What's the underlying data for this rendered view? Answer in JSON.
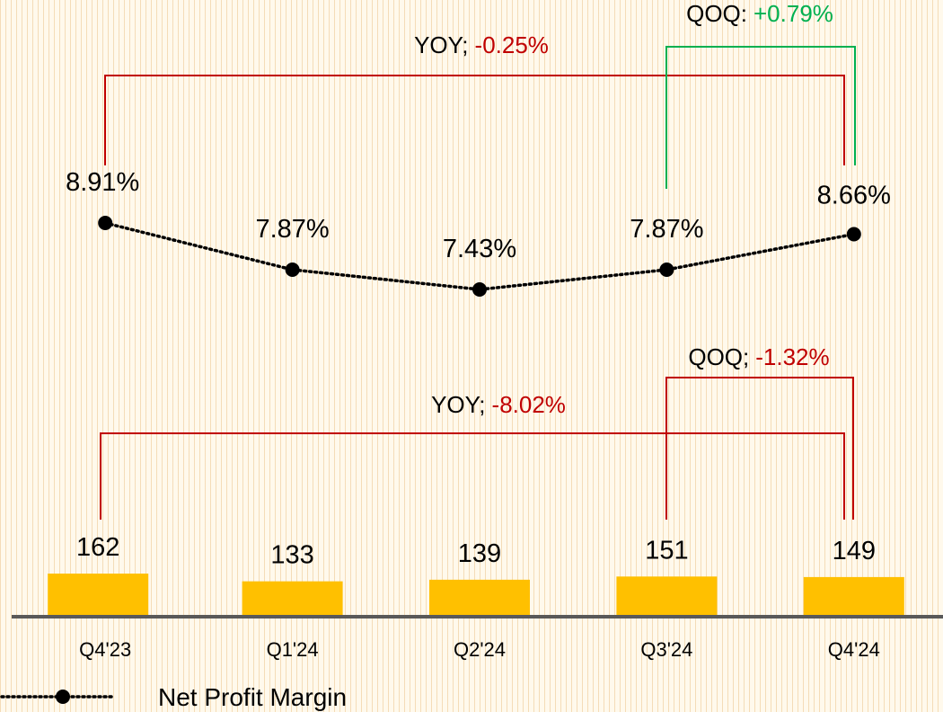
{
  "chart_data": {
    "type": "bar_line",
    "categories": [
      "Q4'23",
      "Q1'24",
      "Q2'24",
      "Q3'24",
      "Q4'24"
    ],
    "series": [
      {
        "name": null,
        "type": "bar",
        "color": "#ffc000",
        "values": [
          162,
          133,
          139,
          151,
          149
        ]
      },
      {
        "name": "Net Profit Margin",
        "type": "line",
        "color": "#000000",
        "values": [
          8.91,
          7.87,
          7.43,
          7.87,
          8.66
        ],
        "value_labels": [
          "8.91%",
          "7.87%",
          "7.43%",
          "7.87%",
          "8.66%"
        ]
      }
    ],
    "annotations": [
      {
        "label": "YOY;",
        "change": "-0.25%",
        "color": "#c00000"
      },
      {
        "label": "QOQ:",
        "change": "+0.79%",
        "color": "#00b050"
      },
      {
        "label": "YOY;",
        "change": "-8.02%",
        "color": "#c00000"
      },
      {
        "label": "QOQ;",
        "change": "-1.32%",
        "color": "#c00000"
      }
    ]
  }
}
